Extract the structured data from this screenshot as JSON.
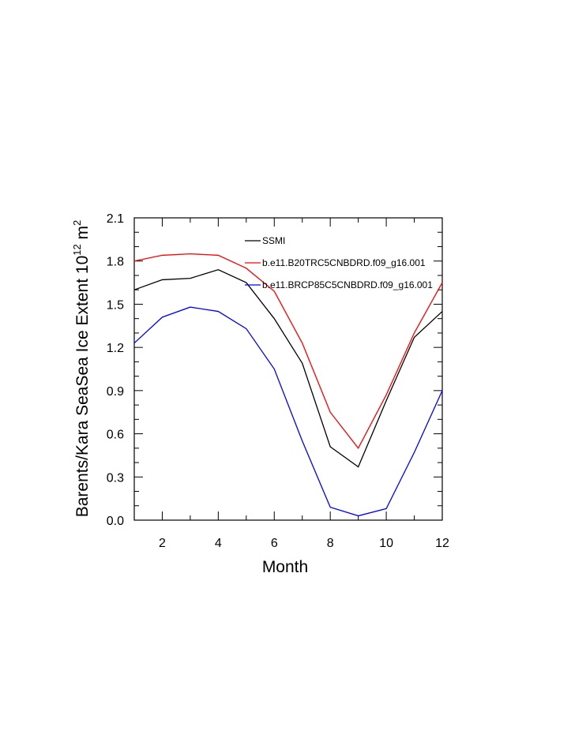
{
  "chart_data": {
    "type": "line",
    "title": "",
    "xlabel": "Month",
    "ylabel": "Barents/Kara SeaSea Ice Extent 10",
    "ylabel_exponent": "12",
    "ylabel_unit": " m",
    "ylabel_unit_exponent": "2",
    "x": [
      1,
      2,
      3,
      4,
      5,
      6,
      7,
      8,
      9,
      10,
      11,
      12
    ],
    "xlim": [
      1,
      12
    ],
    "ylim": [
      0.0,
      2.1
    ],
    "xticks": [
      2,
      4,
      6,
      8,
      10,
      12
    ],
    "xtick_labels": [
      "2",
      "4",
      "6",
      "8",
      "10",
      "12"
    ],
    "yticks": [
      0.0,
      0.3,
      0.6,
      0.9,
      1.2,
      1.5,
      1.8,
      2.1
    ],
    "ytick_labels": [
      "0.0",
      "0.3",
      "0.6",
      "0.9",
      "1.2",
      "1.5",
      "1.8",
      "2.1"
    ],
    "grid": false,
    "legend_position": "top-right",
    "series": [
      {
        "name": "SSMI",
        "color": "#000000",
        "values": [
          1.6,
          1.67,
          1.68,
          1.74,
          1.65,
          1.4,
          1.09,
          0.51,
          0.37,
          0.83,
          1.27,
          1.45
        ]
      },
      {
        "name": "b.e11.B20TRC5CNBDRD.f09_g16.001",
        "color": "#ff0000",
        "values": [
          1.8,
          1.84,
          1.85,
          1.84,
          1.75,
          1.59,
          1.23,
          0.75,
          0.5,
          0.87,
          1.3,
          1.65
        ]
      },
      {
        "name": "b.e11.BRCP85C5CNBDRD.f09_g16.001",
        "color": "#0000ff",
        "values": [
          1.23,
          1.41,
          1.48,
          1.45,
          1.33,
          1.05,
          0.55,
          0.09,
          0.03,
          0.08,
          0.47,
          0.9
        ]
      }
    ]
  }
}
